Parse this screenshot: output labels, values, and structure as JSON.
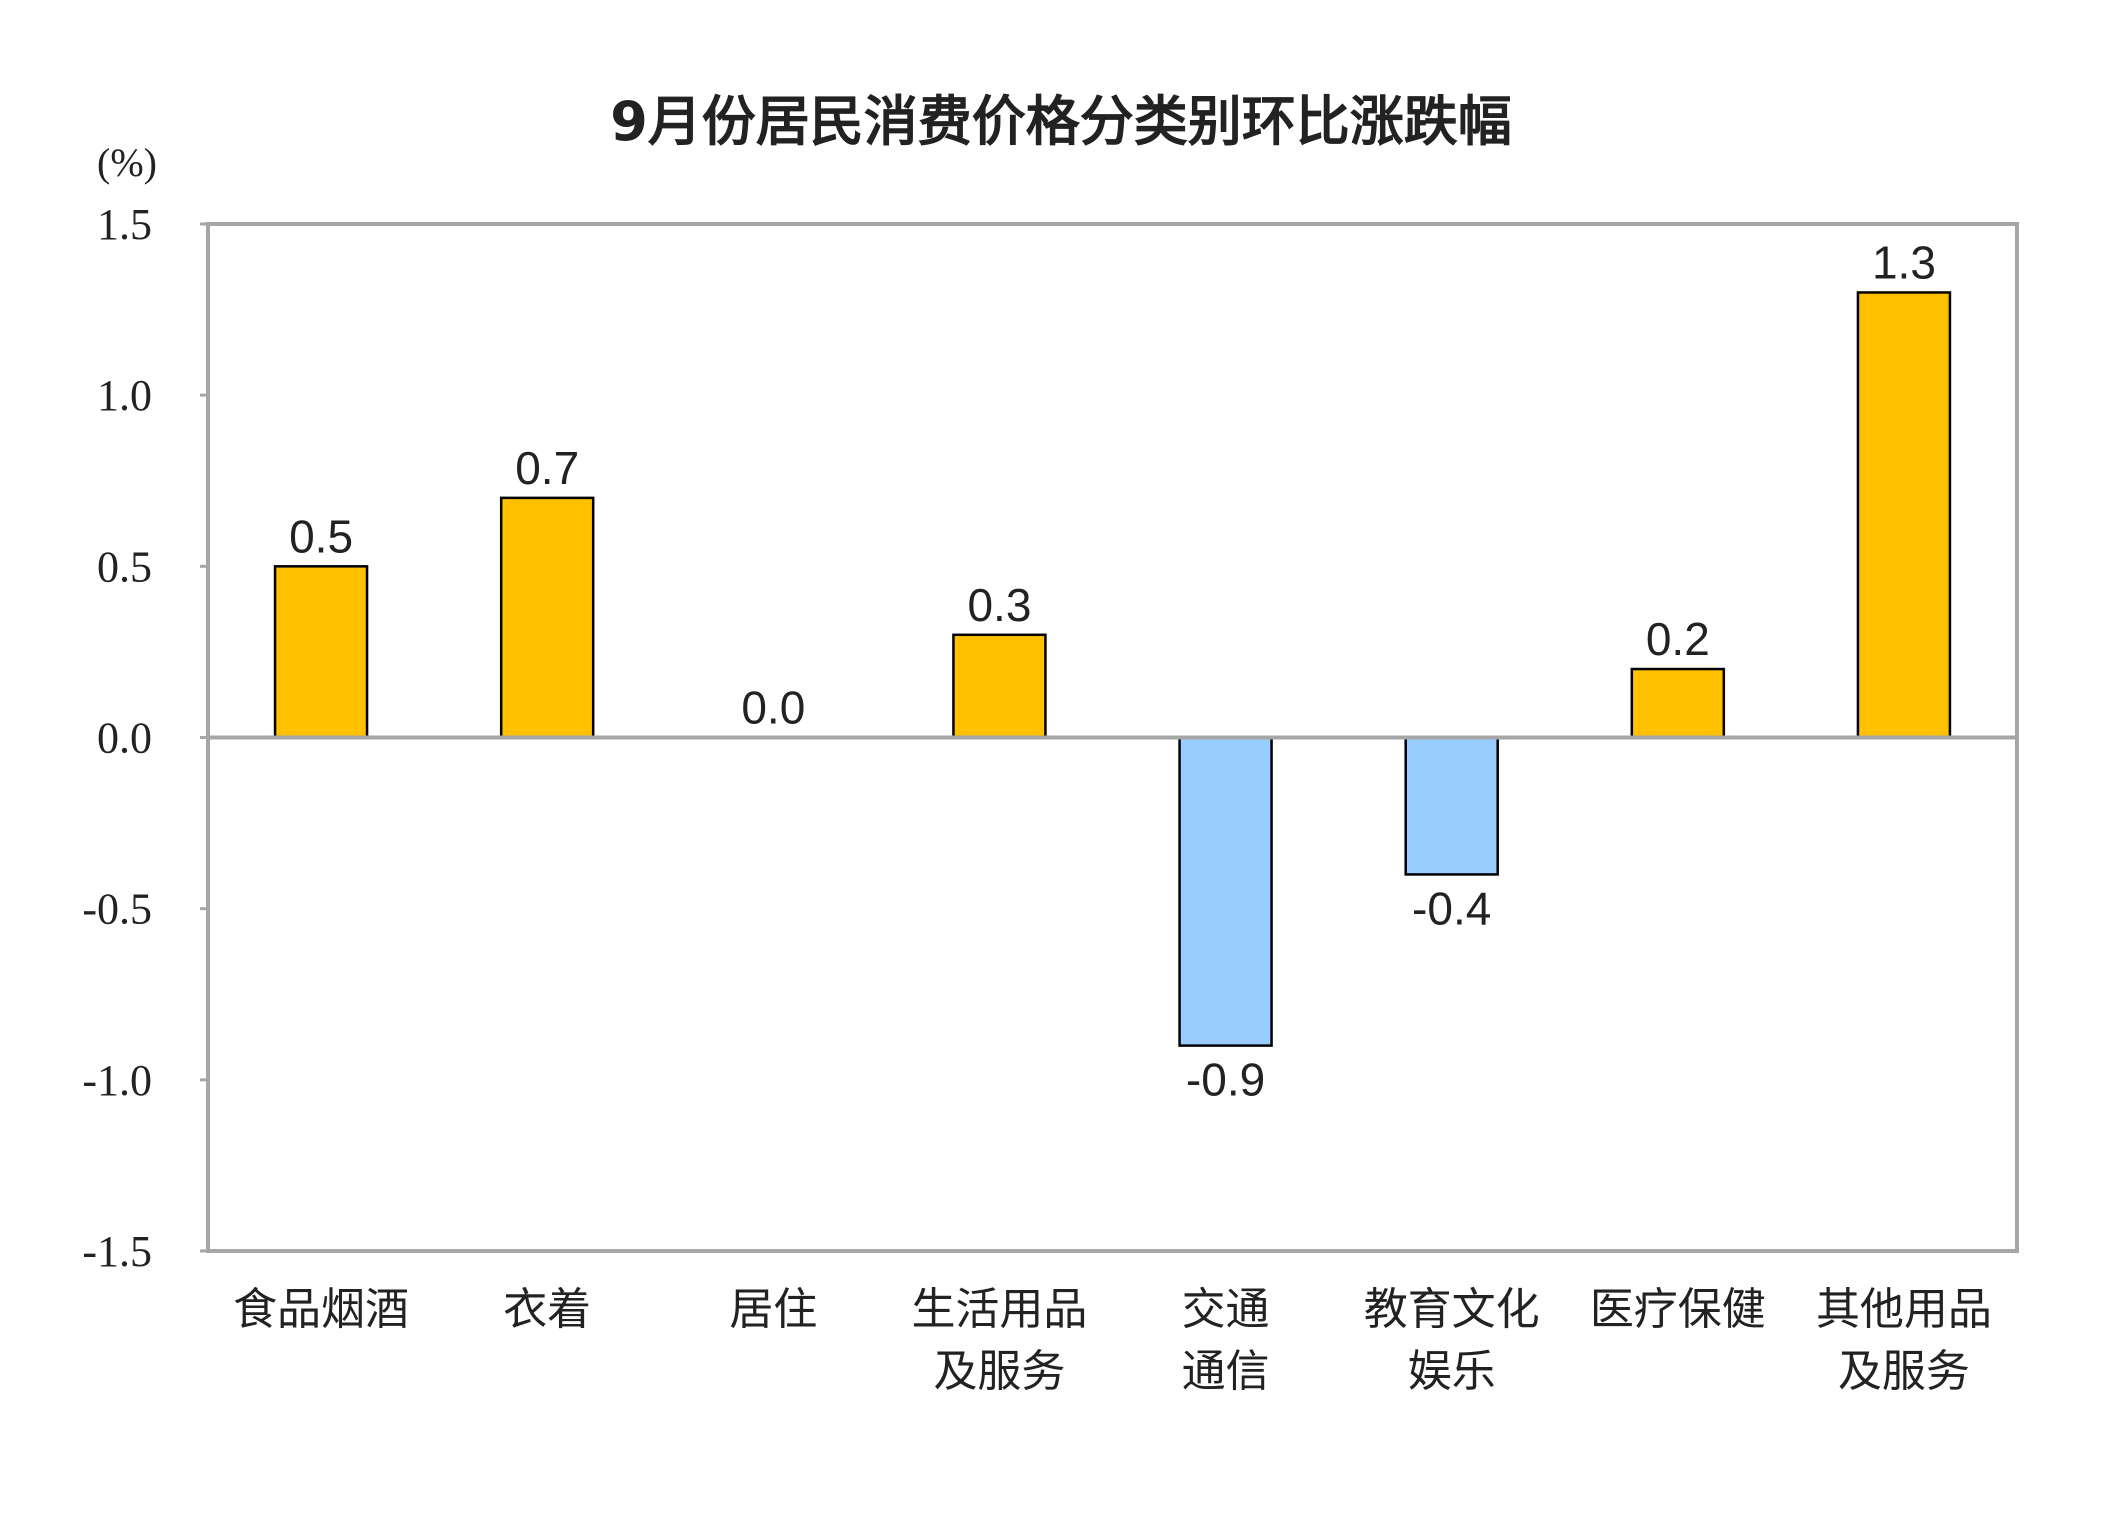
{
  "chart_data": {
    "type": "bar",
    "title": "9月份居民消费价格分类别环比涨跌幅",
    "ylabel": "(%)",
    "xlabel": "",
    "ylim": [
      -1.5,
      1.5
    ],
    "yticks": [
      "1.5",
      "1.0",
      "0.5",
      "0.0",
      "-0.5",
      "-1.0",
      "-1.5"
    ],
    "ytick_values": [
      1.5,
      1.0,
      0.5,
      0.0,
      -0.5,
      -1.0,
      -1.5
    ],
    "grid": false,
    "categories": [
      [
        "食品烟酒"
      ],
      [
        "衣着"
      ],
      [
        "居住"
      ],
      [
        "生活用品",
        "及服务"
      ],
      [
        "交通",
        "通信"
      ],
      [
        "教育文化",
        "娱乐"
      ],
      [
        "医疗保健"
      ],
      [
        "其他用品",
        "及服务"
      ]
    ],
    "values": [
      0.5,
      0.7,
      0.0,
      0.3,
      -0.9,
      -0.4,
      0.2,
      1.3
    ],
    "data_labels": [
      "0.5",
      "0.7",
      "0.0",
      "0.3",
      "-0.9",
      "-0.4",
      "0.2",
      "1.3"
    ],
    "colors": {
      "positive": "#FFC000",
      "negative": "#99CCFF",
      "bar_border": "#000000",
      "frame": "#A6A6A6"
    }
  }
}
